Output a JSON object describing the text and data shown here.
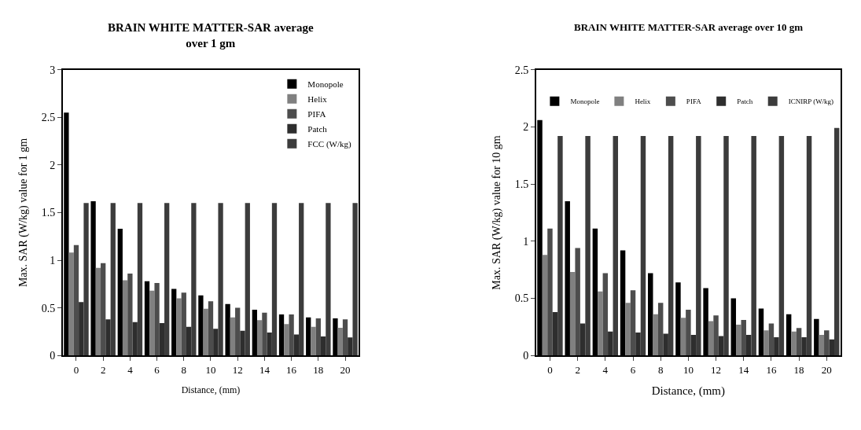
{
  "chart_data": [
    {
      "type": "bar",
      "title": "BRAIN WHITE MATTER-SAR average over 1 gm",
      "xlabel": "Distance, (mm)",
      "ylabel": "Max. SAR (W/kg) value for 1 gm",
      "categories": [
        "0",
        "2",
        "4",
        "6",
        "8",
        "10",
        "12",
        "14",
        "16",
        "18",
        "20"
      ],
      "ylim": [
        0,
        3
      ],
      "yticks": [
        0,
        0.5,
        1,
        1.5,
        2,
        2.5,
        3
      ],
      "legend": "top right",
      "series": [
        {
          "name": "Monopole",
          "color": "#000000",
          "values": [
            2.55,
            1.62,
            1.33,
            0.78,
            0.7,
            0.63,
            0.54,
            0.48,
            0.43,
            0.4,
            0.39
          ]
        },
        {
          "name": "Helix",
          "color": "#808080",
          "values": [
            1.08,
            0.92,
            0.79,
            0.68,
            0.6,
            0.49,
            0.4,
            0.37,
            0.33,
            0.3,
            0.29
          ]
        },
        {
          "name": "PIFA",
          "color": "#4d4d4d",
          "values": [
            1.16,
            0.97,
            0.86,
            0.76,
            0.66,
            0.57,
            0.5,
            0.45,
            0.43,
            0.39,
            0.38
          ]
        },
        {
          "name": "Patch",
          "color": "#2e2e2e",
          "values": [
            0.56,
            0.38,
            0.35,
            0.34,
            0.3,
            0.28,
            0.26,
            0.24,
            0.22,
            0.2,
            0.19
          ]
        },
        {
          "name": "FCC (W/kg)",
          "color": "#3c3c3c",
          "values": [
            1.6,
            1.6,
            1.6,
            1.6,
            1.6,
            1.6,
            1.6,
            1.6,
            1.6,
            1.6,
            1.6
          ]
        }
      ]
    },
    {
      "type": "bar",
      "title": "BRAIN WHITE MATTER-SAR average over 10 gm",
      "xlabel": "Distance, (mm)",
      "ylabel": "Max. SAR (W/kg) value for 10 gm",
      "categories": [
        "0",
        "2",
        "4",
        "6",
        "8",
        "10",
        "12",
        "14",
        "16",
        "18",
        "20"
      ],
      "ylim": [
        0,
        2.5
      ],
      "yticks": [
        0,
        0.5,
        1,
        1.5,
        2,
        2.5
      ],
      "legend": "top",
      "series": [
        {
          "name": "Monopole",
          "color": "#000000",
          "values": [
            2.06,
            1.35,
            1.11,
            0.92,
            0.72,
            0.64,
            0.59,
            0.5,
            0.41,
            0.36,
            0.32
          ]
        },
        {
          "name": "Helix",
          "color": "#808080",
          "values": [
            0.88,
            0.73,
            0.56,
            0.46,
            0.36,
            0.33,
            0.3,
            0.27,
            0.22,
            0.21,
            0.18
          ]
        },
        {
          "name": "PIFA",
          "color": "#4d4d4d",
          "values": [
            1.11,
            0.94,
            0.72,
            0.57,
            0.46,
            0.4,
            0.35,
            0.31,
            0.28,
            0.24,
            0.22
          ]
        },
        {
          "name": "Patch",
          "color": "#2e2e2e",
          "values": [
            0.38,
            0.28,
            0.21,
            0.2,
            0.19,
            0.18,
            0.17,
            0.18,
            0.16,
            0.16,
            0.14
          ]
        },
        {
          "name": "ICNIRP (W/kg)",
          "color": "#3c3c3c",
          "values": [
            1.92,
            1.92,
            1.92,
            1.92,
            1.92,
            1.92,
            1.92,
            1.92,
            1.92,
            1.92,
            1.99
          ]
        }
      ]
    }
  ]
}
